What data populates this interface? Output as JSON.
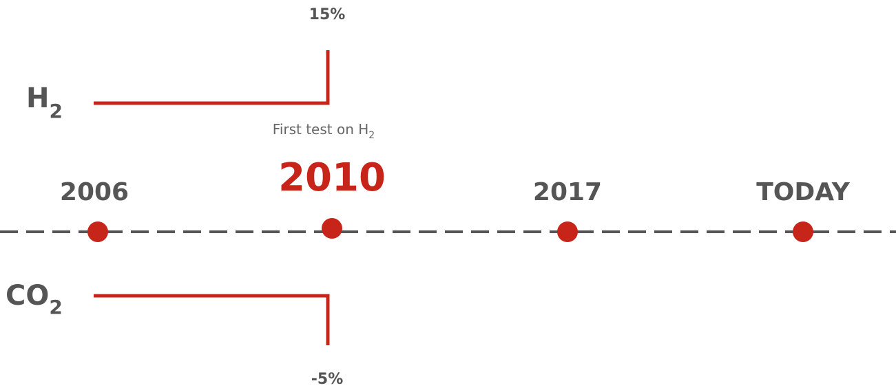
{
  "h2": {
    "label": "H",
    "label_sub": "2",
    "value": "15%",
    "note": "First test on H",
    "note_sub": "2"
  },
  "co2": {
    "label": "CO",
    "label_sub": "2",
    "value": "-5%"
  },
  "milestones": [
    "2006",
    "2010",
    "2017",
    "TODAY"
  ]
}
